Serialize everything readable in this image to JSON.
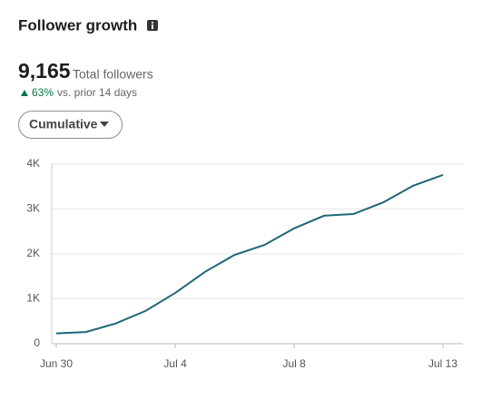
{
  "header": {
    "title": "Follower growth",
    "total": "9,165",
    "total_label": "Total followers",
    "change": "63%",
    "change_label": "vs. prior 14 days",
    "mode_button": "Cumulative"
  },
  "chart_data": {
    "type": "line",
    "categories": [
      "Jun 30",
      null,
      null,
      null,
      "Jul 4",
      null,
      null,
      null,
      "Jul 8",
      null,
      null,
      null,
      null,
      "Jul 13"
    ],
    "series": [
      {
        "color": "#1f6577",
        "values": [
          230,
          260,
          450,
          730,
          1130,
          1600,
          1980,
          2200,
          2570,
          2850,
          2890,
          3150,
          3520,
          3760
        ]
      }
    ],
    "ylim": [
      0,
      4000
    ],
    "yticks": [
      0,
      {
        "value": 1000,
        "label": "1K"
      },
      {
        "value": 2000,
        "label": "2K"
      },
      {
        "value": 3000,
        "label": "3K"
      },
      {
        "value": 4000,
        "label": "4K"
      }
    ],
    "grid": true
  }
}
